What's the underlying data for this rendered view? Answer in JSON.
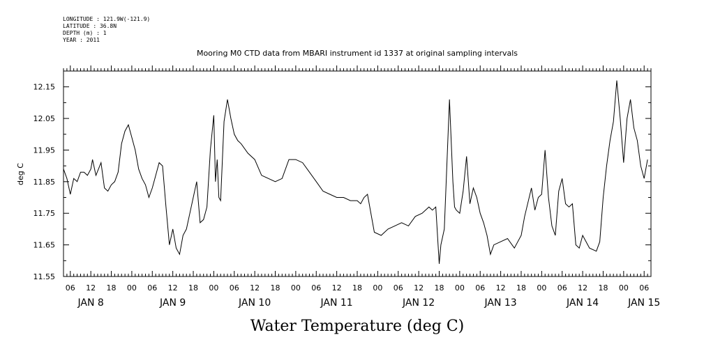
{
  "header": {
    "longitude": "LONGITUDE : 121.9W(-121.9)",
    "latitude": "LATITUDE : 36.8N",
    "depth": "DEPTH (m) : 1",
    "year": "YEAR : 2011"
  },
  "chart_data": {
    "type": "line",
    "title": "Mooring M0 CTD data from MBARI instrument id 1337 at original sampling intervals",
    "xlabel": "Water Temperature (deg C)",
    "ylabel": "deg C",
    "xlim": [
      "2011-01-08T04:00",
      "2011-01-15T08:00"
    ],
    "ylim": [
      11.55,
      12.2
    ],
    "yticks": [
      "11.55",
      "11.65",
      "11.75",
      "11.85",
      "11.95",
      "12.05",
      "12.15"
    ],
    "hour_ticks": [
      "06",
      "12",
      "18",
      "00",
      "06",
      "12",
      "18",
      "00",
      "06",
      "12",
      "18",
      "00",
      "06",
      "12",
      "18",
      "00",
      "06",
      "12",
      "18",
      "00",
      "06",
      "12",
      "18",
      "00",
      "06",
      "12",
      "18",
      "00",
      "06"
    ],
    "day_labels": [
      "JAN  8",
      "JAN  9",
      "JAN 10",
      "JAN 11",
      "JAN 12",
      "JAN 13",
      "JAN 14",
      "JAN 15"
    ],
    "grid": false,
    "series": [
      {
        "x": [
          "2011-01-08T04:00",
          "2011-01-08T05:00",
          "2011-01-08T06:00",
          "2011-01-08T07:00",
          "2011-01-08T08:00",
          "2011-01-08T09:00",
          "2011-01-08T10:00",
          "2011-01-08T11:00",
          "2011-01-08T12:00",
          "2011-01-08T12:30",
          "2011-01-08T13:30",
          "2011-01-08T15:00",
          "2011-01-08T16:00",
          "2011-01-08T17:00",
          "2011-01-08T18:00",
          "2011-01-08T19:00",
          "2011-01-08T20:00",
          "2011-01-08T21:00",
          "2011-01-08T22:00",
          "2011-01-08T23:00",
          "2011-01-09T00:00",
          "2011-01-09T01:00",
          "2011-01-09T02:00",
          "2011-01-09T03:00",
          "2011-01-09T04:00",
          "2011-01-09T05:00",
          "2011-01-09T06:00",
          "2011-01-09T07:00",
          "2011-01-09T08:00",
          "2011-01-09T09:00",
          "2011-01-09T10:00",
          "2011-01-09T11:00",
          "2011-01-09T12:00",
          "2011-01-09T13:00",
          "2011-01-09T14:00",
          "2011-01-09T15:00",
          "2011-01-09T16:00",
          "2011-01-09T17:00",
          "2011-01-09T18:00",
          "2011-01-09T19:00",
          "2011-01-09T20:00",
          "2011-01-09T21:00",
          "2011-01-09T22:00",
          "2011-01-09T23:00",
          "2011-01-10T00:00",
          "2011-01-10T00:30",
          "2011-01-10T01:00",
          "2011-01-10T01:30",
          "2011-01-10T02:00",
          "2011-01-10T03:00",
          "2011-01-10T04:00",
          "2011-01-10T05:00",
          "2011-01-10T06:00",
          "2011-01-10T07:00",
          "2011-01-10T08:00",
          "2011-01-10T10:00",
          "2011-01-10T12:00",
          "2011-01-10T14:00",
          "2011-01-10T16:00",
          "2011-01-10T18:00",
          "2011-01-10T20:00",
          "2011-01-10T22:00",
          "2011-01-11T00:00",
          "2011-01-11T02:00",
          "2011-01-11T04:00",
          "2011-01-11T06:00",
          "2011-01-11T08:00",
          "2011-01-11T10:00",
          "2011-01-11T12:00",
          "2011-01-11T14:00",
          "2011-01-11T16:00",
          "2011-01-11T18:00",
          "2011-01-11T19:00",
          "2011-01-11T20:00",
          "2011-01-11T21:00",
          "2011-01-11T23:00",
          "2011-01-12T01:00",
          "2011-01-12T03:00",
          "2011-01-12T05:00",
          "2011-01-12T07:00",
          "2011-01-12T09:00",
          "2011-01-12T11:00",
          "2011-01-12T13:00",
          "2011-01-12T15:00",
          "2011-01-12T16:00",
          "2011-01-12T17:00",
          "2011-01-12T18:00",
          "2011-01-12T18:30",
          "2011-01-12T19:30",
          "2011-01-12T21:00",
          "2011-01-12T22:00",
          "2011-01-12T22:30",
          "2011-01-12T23:00",
          "2011-01-13T00:00",
          "2011-01-13T01:00",
          "2011-01-13T02:00",
          "2011-01-13T03:00",
          "2011-01-13T04:00",
          "2011-01-13T05:00",
          "2011-01-13T06:00",
          "2011-01-13T07:00",
          "2011-01-13T08:00",
          "2011-01-13T09:00",
          "2011-01-13T10:00",
          "2011-01-13T12:00",
          "2011-01-13T14:00",
          "2011-01-13T16:00",
          "2011-01-13T18:00",
          "2011-01-13T19:00",
          "2011-01-13T21:00",
          "2011-01-13T22:00",
          "2011-01-13T23:00",
          "2011-01-14T00:00",
          "2011-01-14T01:00",
          "2011-01-14T02:00",
          "2011-01-14T03:00",
          "2011-01-14T04:00",
          "2011-01-14T05:00",
          "2011-01-14T06:00",
          "2011-01-14T07:00",
          "2011-01-14T08:00",
          "2011-01-14T09:00",
          "2011-01-14T10:00",
          "2011-01-14T11:00",
          "2011-01-14T12:00",
          "2011-01-14T14:00",
          "2011-01-14T16:00",
          "2011-01-14T17:00",
          "2011-01-14T18:00",
          "2011-01-14T19:00",
          "2011-01-14T20:00",
          "2011-01-14T21:00",
          "2011-01-14T22:00",
          "2011-01-14T23:00",
          "2011-01-15T00:00",
          "2011-01-15T01:00",
          "2011-01-15T02:00",
          "2011-01-15T03:00",
          "2011-01-15T04:00",
          "2011-01-15T05:00",
          "2011-01-15T06:00",
          "2011-01-15T07:00"
        ],
        "y": [
          11.89,
          11.86,
          11.81,
          11.86,
          11.85,
          11.88,
          11.88,
          11.87,
          11.89,
          11.92,
          11.87,
          11.91,
          11.83,
          11.82,
          11.84,
          11.85,
          11.88,
          11.97,
          12.01,
          12.03,
          11.99,
          11.95,
          11.89,
          11.86,
          11.84,
          11.8,
          11.83,
          11.87,
          11.91,
          11.9,
          11.77,
          11.65,
          11.7,
          11.64,
          11.62,
          11.68,
          11.7,
          11.75,
          11.8,
          11.85,
          11.72,
          11.73,
          11.77,
          11.95,
          12.06,
          11.85,
          11.92,
          11.8,
          11.79,
          12.04,
          12.11,
          12.05,
          12.0,
          11.98,
          11.97,
          11.94,
          11.92,
          11.87,
          11.86,
          11.85,
          11.86,
          11.92,
          11.92,
          11.91,
          11.88,
          11.85,
          11.82,
          11.81,
          11.8,
          11.8,
          11.79,
          11.79,
          11.78,
          11.8,
          11.81,
          11.69,
          11.68,
          11.7,
          11.71,
          11.72,
          11.71,
          11.74,
          11.75,
          11.77,
          11.76,
          11.77,
          11.59,
          11.65,
          11.7,
          12.11,
          11.85,
          11.77,
          11.76,
          11.75,
          11.82,
          11.93,
          11.78,
          11.83,
          11.8,
          11.75,
          11.72,
          11.68,
          11.62,
          11.65,
          11.66,
          11.67,
          11.64,
          11.68,
          11.74,
          11.83,
          11.76,
          11.8,
          11.81,
          11.95,
          11.8,
          11.71,
          11.68,
          11.82,
          11.86,
          11.78,
          11.77,
          11.78,
          11.65,
          11.64,
          11.68,
          11.64,
          11.63,
          11.66,
          11.8,
          11.9,
          11.98,
          12.04,
          12.17,
          12.05,
          11.91,
          12.05,
          12.11,
          12.02,
          11.98,
          11.9,
          11.86,
          11.92
        ]
      }
    ]
  }
}
